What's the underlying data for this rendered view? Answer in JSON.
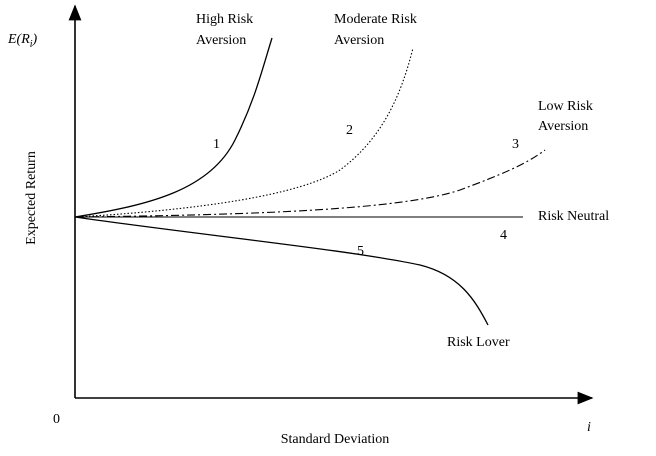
{
  "y_symbol": {
    "base": "E(R",
    "sub": "i",
    "close": ")"
  },
  "y_axis_label": "Expected Return",
  "x_axis_label": "Standard Deviation",
  "x_axis_sub": "i",
  "origin": "0",
  "curves": [
    {
      "number": "1",
      "label": [
        "High Risk",
        "Aversion"
      ]
    },
    {
      "number": "2",
      "label": [
        "Moderate Risk",
        "Aversion"
      ]
    },
    {
      "number": "3",
      "label": [
        "Low Risk",
        "Aversion"
      ]
    },
    {
      "number": "4",
      "label": [
        "Risk Neutral"
      ]
    },
    {
      "number": "5",
      "label": [
        "Risk Lover"
      ]
    }
  ]
}
